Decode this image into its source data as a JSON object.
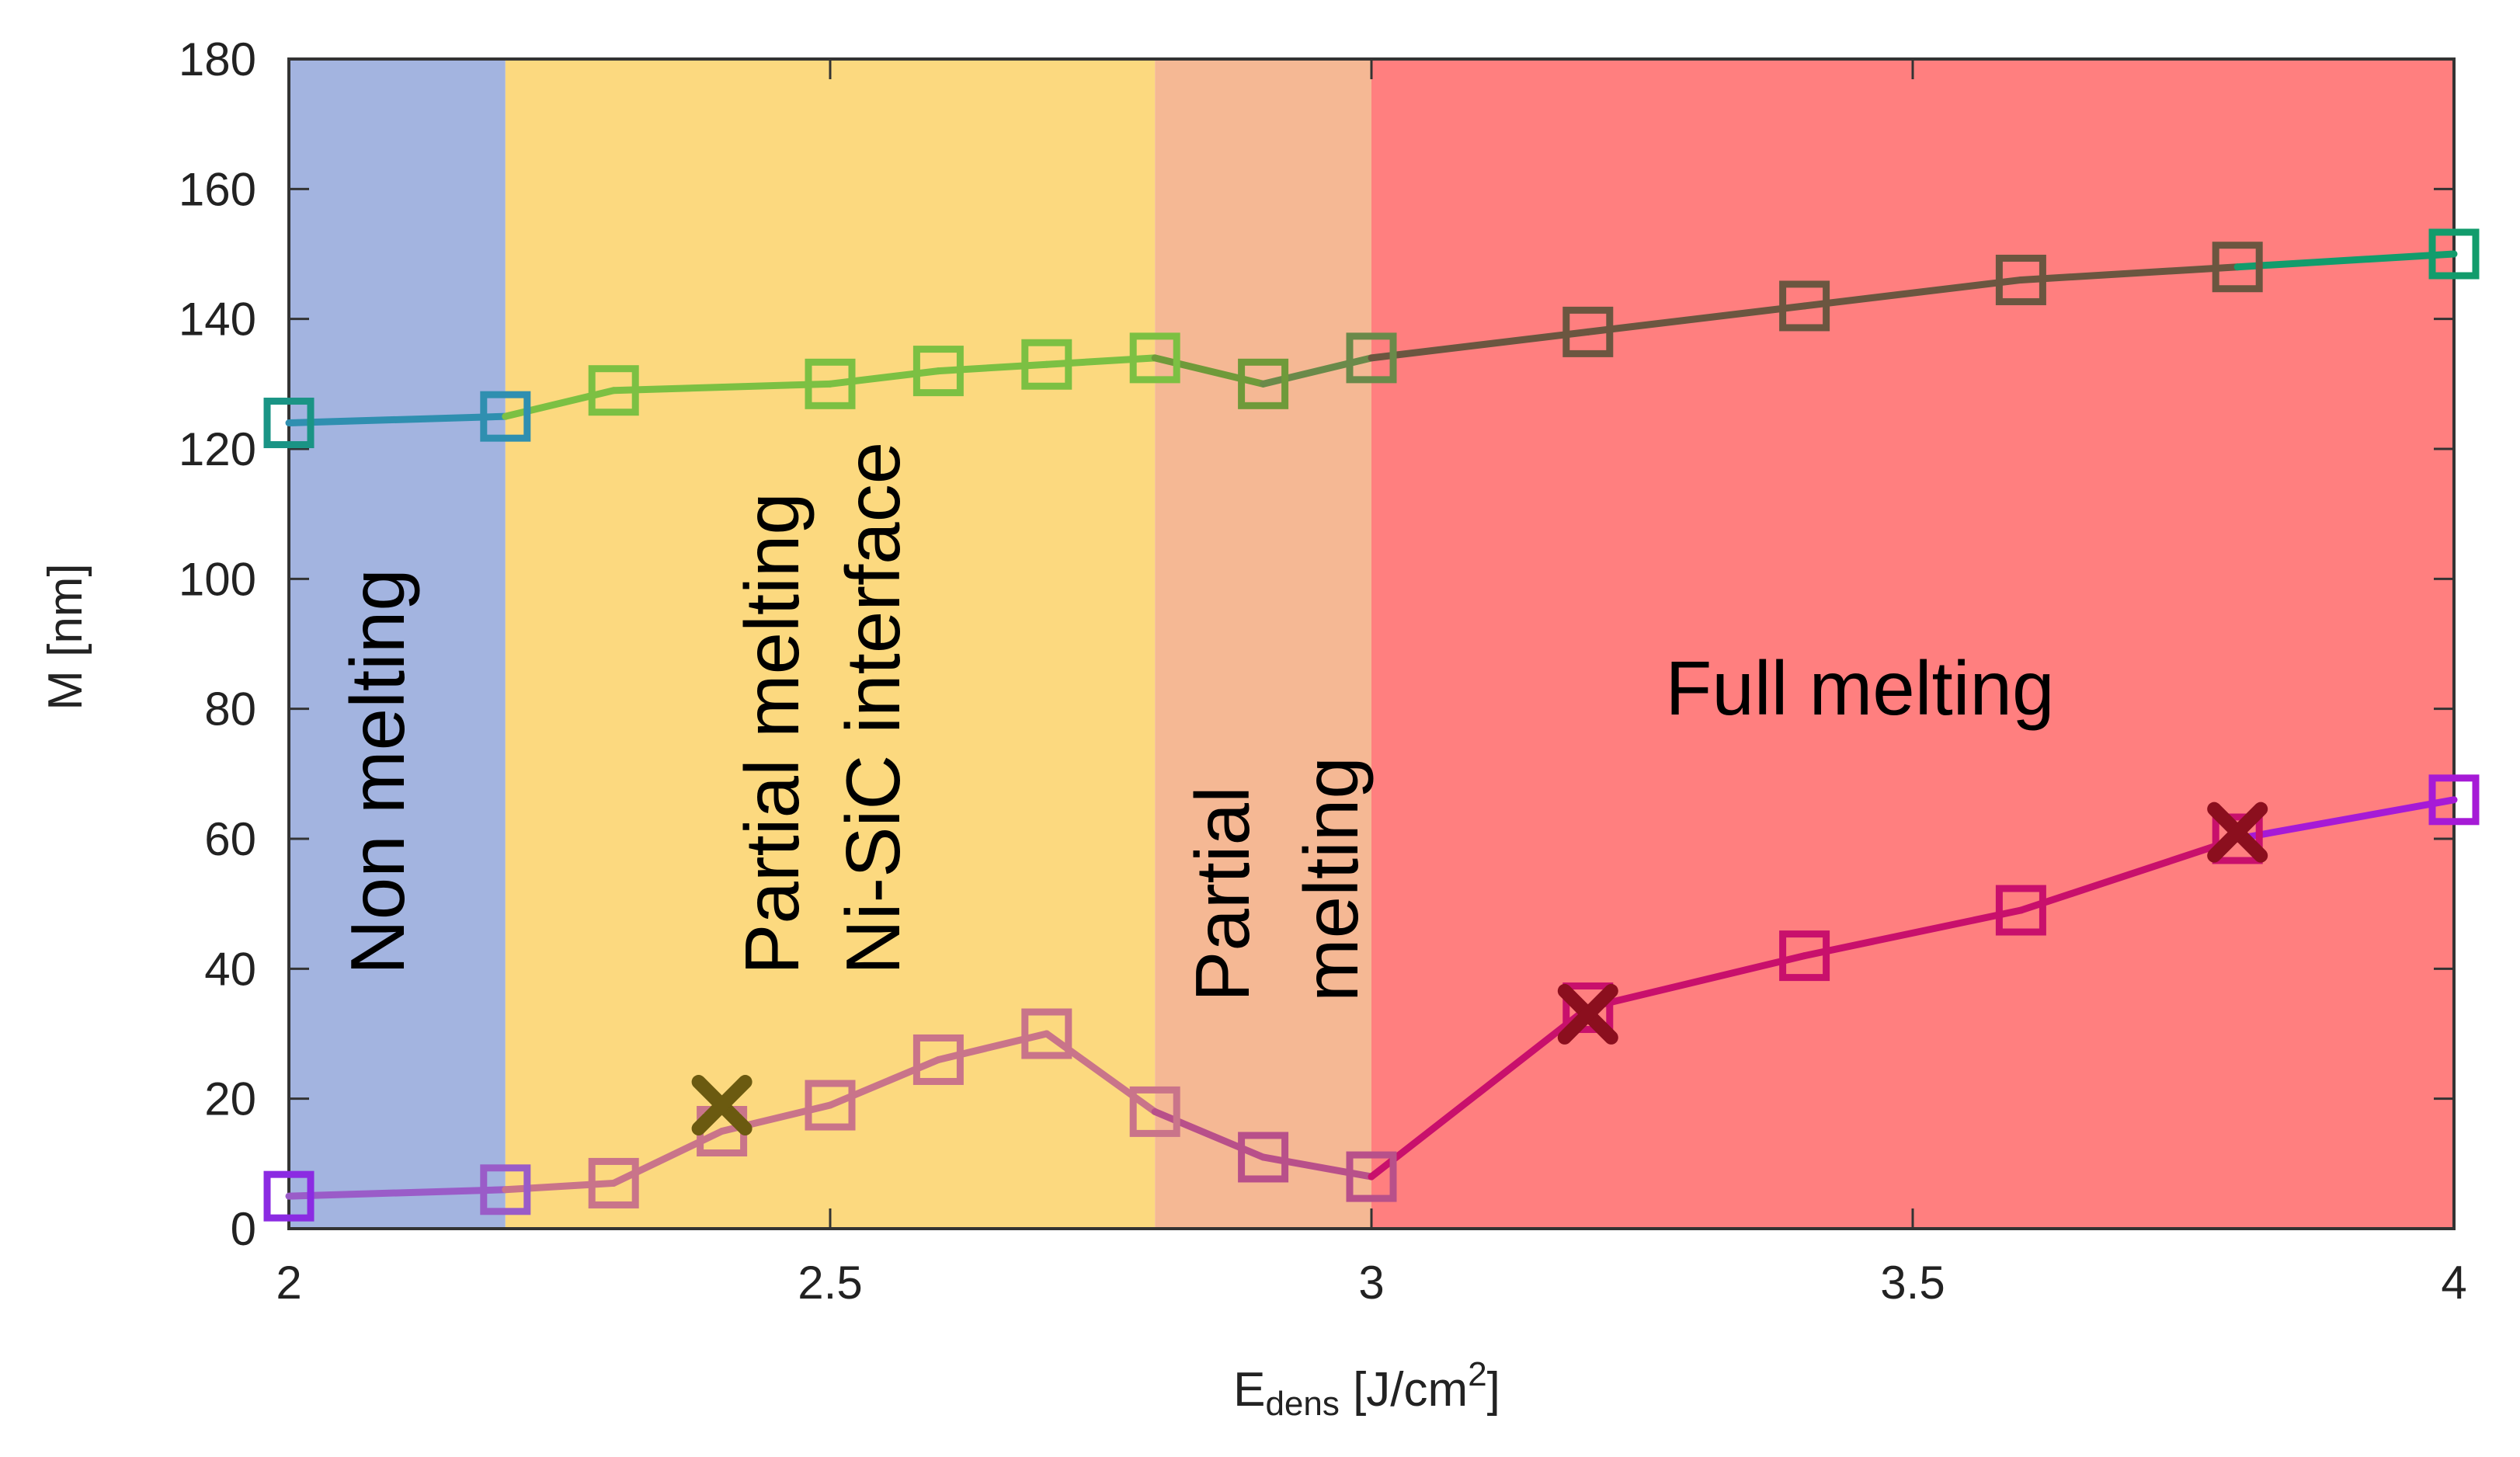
{
  "chart_data": {
    "type": "line",
    "title": "",
    "xlabel": {
      "main": "E",
      "sub": "dens",
      "unit_open": " [J/cm",
      "sup": "2",
      "unit_close": "]"
    },
    "ylabel": "M [nm]",
    "xlim": [
      2,
      4
    ],
    "ylim": [
      0,
      180
    ],
    "x_ticks": [
      {
        "value": 2,
        "label": "2"
      },
      {
        "value": 2.5,
        "label": "2.5"
      },
      {
        "value": 3,
        "label": "3"
      },
      {
        "value": 3.5,
        "label": "3.5"
      },
      {
        "value": 4,
        "label": "4"
      }
    ],
    "y_ticks": [
      {
        "value": 0,
        "label": "0"
      },
      {
        "value": 20,
        "label": "20"
      },
      {
        "value": 40,
        "label": "40"
      },
      {
        "value": 60,
        "label": "60"
      },
      {
        "value": 80,
        "label": "80"
      },
      {
        "value": 100,
        "label": "100"
      },
      {
        "value": 120,
        "label": "120"
      },
      {
        "value": 140,
        "label": "140"
      },
      {
        "value": 160,
        "label": "160"
      },
      {
        "value": 180,
        "label": "180"
      }
    ],
    "regions": [
      {
        "name": "non-melting",
        "x_start": 2.0,
        "x_end": 2.2,
        "color": "#a3b4e0",
        "label_lines": [
          "Non melting"
        ]
      },
      {
        "name": "partial-melting-interface",
        "x_start": 2.2,
        "x_end": 2.8,
        "color": "#fcd97f",
        "label_lines": [
          "Partial melting",
          "Ni-SiC interface"
        ]
      },
      {
        "name": "partial-melting",
        "x_start": 2.8,
        "x_end": 3.0,
        "color": "#f5b894",
        "label_lines": [
          "Partial",
          "melting"
        ]
      },
      {
        "name": "full-melting",
        "x_start": 3.0,
        "x_end": 4.0,
        "color": "#ff7f7f",
        "label_lines": [
          "Full melting"
        ]
      }
    ],
    "series": [
      {
        "name": "upper",
        "x": [
          2.0,
          2.2,
          2.3,
          2.5,
          2.6,
          2.7,
          2.8,
          2.9,
          3.0,
          3.2,
          3.4,
          3.6,
          3.8,
          4.0
        ],
        "y": [
          124,
          125,
          129,
          130,
          132,
          133,
          134,
          130,
          134,
          138,
          142,
          146,
          148,
          150
        ],
        "colors": [
          "#1a9485",
          "#2f8fb0",
          "#7cc043",
          "#7cc043",
          "#7cc043",
          "#7cc043",
          "#7cc043",
          "#6f9a3a",
          "#6a8a4a",
          "#6b5640",
          "#6b5640",
          "#6b5640",
          "#6b5640",
          "#129c6c"
        ]
      },
      {
        "name": "lower",
        "x": [
          2.0,
          2.2,
          2.3,
          2.4,
          2.5,
          2.6,
          2.7,
          2.8,
          2.9,
          3.0,
          3.2,
          3.4,
          3.6,
          3.8,
          4.0
        ],
        "y": [
          5,
          6,
          7,
          15,
          19,
          26,
          30,
          18,
          11,
          8,
          34,
          42,
          49,
          60,
          66
        ],
        "colors": [
          "#8b2be2",
          "#9a5cc8",
          "#c9748a",
          "#c9748a",
          "#c9748a",
          "#c9748a",
          "#c9748a",
          "#c9748a",
          "#b8508a",
          "#b8508a",
          "#c8106c",
          "#c8106c",
          "#c8106c",
          "#c8106c",
          "#a61ad6"
        ]
      }
    ],
    "cross_markers": [
      {
        "x": 2.4,
        "y": 19,
        "color": "#6b5a10"
      },
      {
        "x": 3.2,
        "y": 33,
        "color": "#8b0f1e"
      },
      {
        "x": 3.8,
        "y": 61,
        "color": "#8b0f1e"
      }
    ]
  }
}
